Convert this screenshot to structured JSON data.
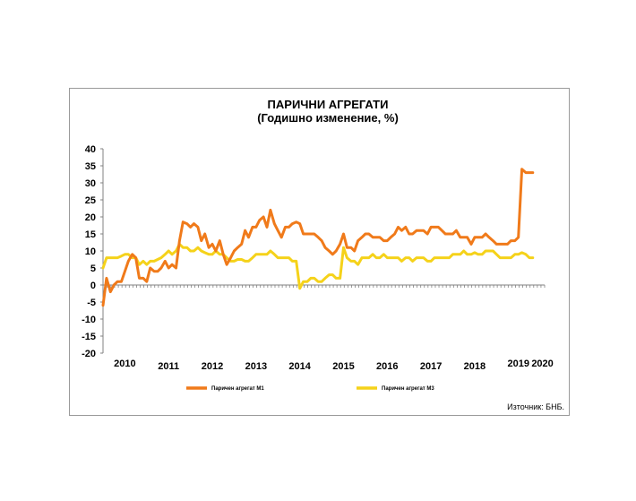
{
  "chart_data": {
    "type": "line",
    "title": "ПАРИЧНИ АГРЕГАТИ",
    "subtitle": "(Годишно изменение, %)",
    "source": "Източник: БНБ.",
    "xlabel": "",
    "ylabel": "",
    "ylim": [
      -20,
      40
    ],
    "yticks": [
      "40",
      "35",
      "30",
      "25",
      "20",
      "15",
      "10",
      "5",
      "0",
      "-5",
      "-10",
      "-15",
      "-20"
    ],
    "xlim": [
      2009.9,
      2020.0
    ],
    "xticks": [
      {
        "label": "2010",
        "x": 2010.4
      },
      {
        "label": "2011",
        "x": 2011.4
      },
      {
        "label": "2012",
        "x": 2012.4
      },
      {
        "label": "2013",
        "x": 2013.4
      },
      {
        "label": "2014",
        "x": 2014.4
      },
      {
        "label": "2015",
        "x": 2015.4
      },
      {
        "label": "2016",
        "x": 2016.4
      },
      {
        "label": "2017",
        "x": 2017.4
      },
      {
        "label": "2018",
        "x": 2018.4
      },
      {
        "label": "2019",
        "x": 2019.4
      },
      {
        "label": "2020",
        "x": 2019.95
      }
    ],
    "grid": false,
    "legend_position": "bottom",
    "series": [
      {
        "name": "Паричен агрегат М1",
        "color": "#f07a1a",
        "x": [
          2009.9,
          2009.98,
          2010.07,
          2010.15,
          2010.23,
          2010.32,
          2010.4,
          2010.48,
          2010.57,
          2010.65,
          2010.73,
          2010.82,
          2010.9,
          2010.98,
          2011.07,
          2011.15,
          2011.23,
          2011.32,
          2011.4,
          2011.48,
          2011.57,
          2011.65,
          2011.73,
          2011.82,
          2011.9,
          2011.98,
          2012.07,
          2012.15,
          2012.23,
          2012.32,
          2012.4,
          2012.48,
          2012.57,
          2012.65,
          2012.73,
          2012.82,
          2012.9,
          2012.98,
          2013.07,
          2013.15,
          2013.23,
          2013.32,
          2013.4,
          2013.48,
          2013.57,
          2013.65,
          2013.73,
          2013.82,
          2013.9,
          2013.98,
          2014.07,
          2014.15,
          2014.23,
          2014.32,
          2014.4,
          2014.48,
          2014.57,
          2014.65,
          2014.73,
          2014.82,
          2014.9,
          2014.98,
          2015.07,
          2015.15,
          2015.23,
          2015.32,
          2015.4,
          2015.48,
          2015.57,
          2015.65,
          2015.73,
          2015.82,
          2015.9,
          2015.98,
          2016.07,
          2016.15,
          2016.23,
          2016.32,
          2016.4,
          2016.48,
          2016.57,
          2016.65,
          2016.73,
          2016.82,
          2016.9,
          2016.98,
          2017.07,
          2017.15,
          2017.23,
          2017.32,
          2017.4,
          2017.48,
          2017.57,
          2017.65,
          2017.73,
          2017.82,
          2017.9,
          2017.98,
          2018.07,
          2018.15,
          2018.23,
          2018.32,
          2018.4,
          2018.48,
          2018.57,
          2018.65,
          2018.73,
          2018.82,
          2018.9,
          2018.98,
          2019.07,
          2019.15,
          2019.23,
          2019.32,
          2019.4,
          2019.48,
          2019.57,
          2019.65,
          2019.73
        ],
        "values": [
          -6,
          2,
          -2,
          0,
          1,
          1,
          4,
          7,
          9,
          8,
          2,
          2,
          1,
          5,
          4,
          4,
          5,
          7,
          5,
          6,
          5,
          13,
          18.5,
          18,
          17,
          18,
          17,
          13,
          15,
          11,
          12,
          10,
          13,
          9,
          6,
          8,
          10,
          11,
          12,
          16,
          14,
          17,
          17,
          19,
          20,
          17,
          22,
          18,
          16,
          14,
          17,
          17,
          18,
          18.5,
          18,
          15,
          15,
          15,
          15,
          14,
          13,
          11,
          10,
          9,
          10,
          12,
          15,
          11,
          11,
          10,
          13,
          14,
          15,
          15,
          14,
          14,
          14,
          13,
          13,
          14,
          15,
          17,
          16,
          17,
          15,
          15,
          16,
          16,
          16,
          15,
          17,
          17,
          17,
          16,
          15,
          15,
          15,
          16,
          14,
          14,
          14,
          12,
          14,
          14,
          14,
          15,
          14,
          13,
          12,
          12,
          12,
          12,
          13,
          13,
          14,
          34,
          33,
          33,
          33
        ]
      },
      {
        "name": "Паричен агрегат М3",
        "color": "#f5d21a",
        "x": [
          2009.9,
          2009.98,
          2010.07,
          2010.15,
          2010.23,
          2010.32,
          2010.4,
          2010.48,
          2010.57,
          2010.65,
          2010.73,
          2010.82,
          2010.9,
          2010.98,
          2011.07,
          2011.15,
          2011.23,
          2011.32,
          2011.4,
          2011.48,
          2011.57,
          2011.65,
          2011.73,
          2011.82,
          2011.9,
          2011.98,
          2012.07,
          2012.15,
          2012.23,
          2012.32,
          2012.4,
          2012.48,
          2012.57,
          2012.65,
          2012.73,
          2012.82,
          2012.9,
          2012.98,
          2013.07,
          2013.15,
          2013.23,
          2013.32,
          2013.4,
          2013.48,
          2013.57,
          2013.65,
          2013.73,
          2013.82,
          2013.9,
          2013.98,
          2014.07,
          2014.15,
          2014.23,
          2014.32,
          2014.4,
          2014.48,
          2014.57,
          2014.65,
          2014.73,
          2014.82,
          2014.9,
          2014.98,
          2015.07,
          2015.15,
          2015.23,
          2015.32,
          2015.4,
          2015.48,
          2015.57,
          2015.65,
          2015.73,
          2015.82,
          2015.9,
          2015.98,
          2016.07,
          2016.15,
          2016.23,
          2016.32,
          2016.4,
          2016.48,
          2016.57,
          2016.65,
          2016.73,
          2016.82,
          2016.9,
          2016.98,
          2017.07,
          2017.15,
          2017.23,
          2017.32,
          2017.4,
          2017.48,
          2017.57,
          2017.65,
          2017.73,
          2017.82,
          2017.9,
          2017.98,
          2018.07,
          2018.15,
          2018.23,
          2018.32,
          2018.4,
          2018.48,
          2018.57,
          2018.65,
          2018.73,
          2018.82,
          2018.9,
          2018.98,
          2019.07,
          2019.15,
          2019.23,
          2019.32,
          2019.4,
          2019.48,
          2019.57,
          2019.65,
          2019.73
        ],
        "values": [
          5,
          8,
          8,
          8,
          8,
          8.5,
          9,
          9,
          8,
          8,
          6,
          7,
          6,
          7,
          7,
          7.5,
          8,
          9,
          10,
          9,
          10,
          12,
          11,
          11,
          10,
          10,
          11,
          10,
          9.5,
          9,
          9,
          10,
          9,
          9,
          8,
          7,
          7,
          7.5,
          7.5,
          7,
          7,
          8,
          9,
          9,
          9,
          9,
          10,
          9,
          8,
          8,
          8,
          8,
          7,
          7,
          -1,
          1,
          1,
          2,
          2,
          1,
          1,
          2,
          3,
          3,
          2,
          2,
          11,
          8,
          7,
          7,
          6,
          8,
          8,
          8,
          9,
          8,
          8,
          9,
          8,
          8,
          8,
          8,
          7,
          8,
          8,
          7,
          8,
          8,
          8,
          7,
          7,
          8,
          8,
          8,
          8,
          8,
          9,
          9,
          9,
          10,
          9,
          9,
          9.5,
          9,
          9,
          10,
          10,
          10,
          9,
          8,
          8,
          8,
          8,
          9,
          9,
          9.5,
          9,
          8,
          8
        ]
      }
    ]
  }
}
